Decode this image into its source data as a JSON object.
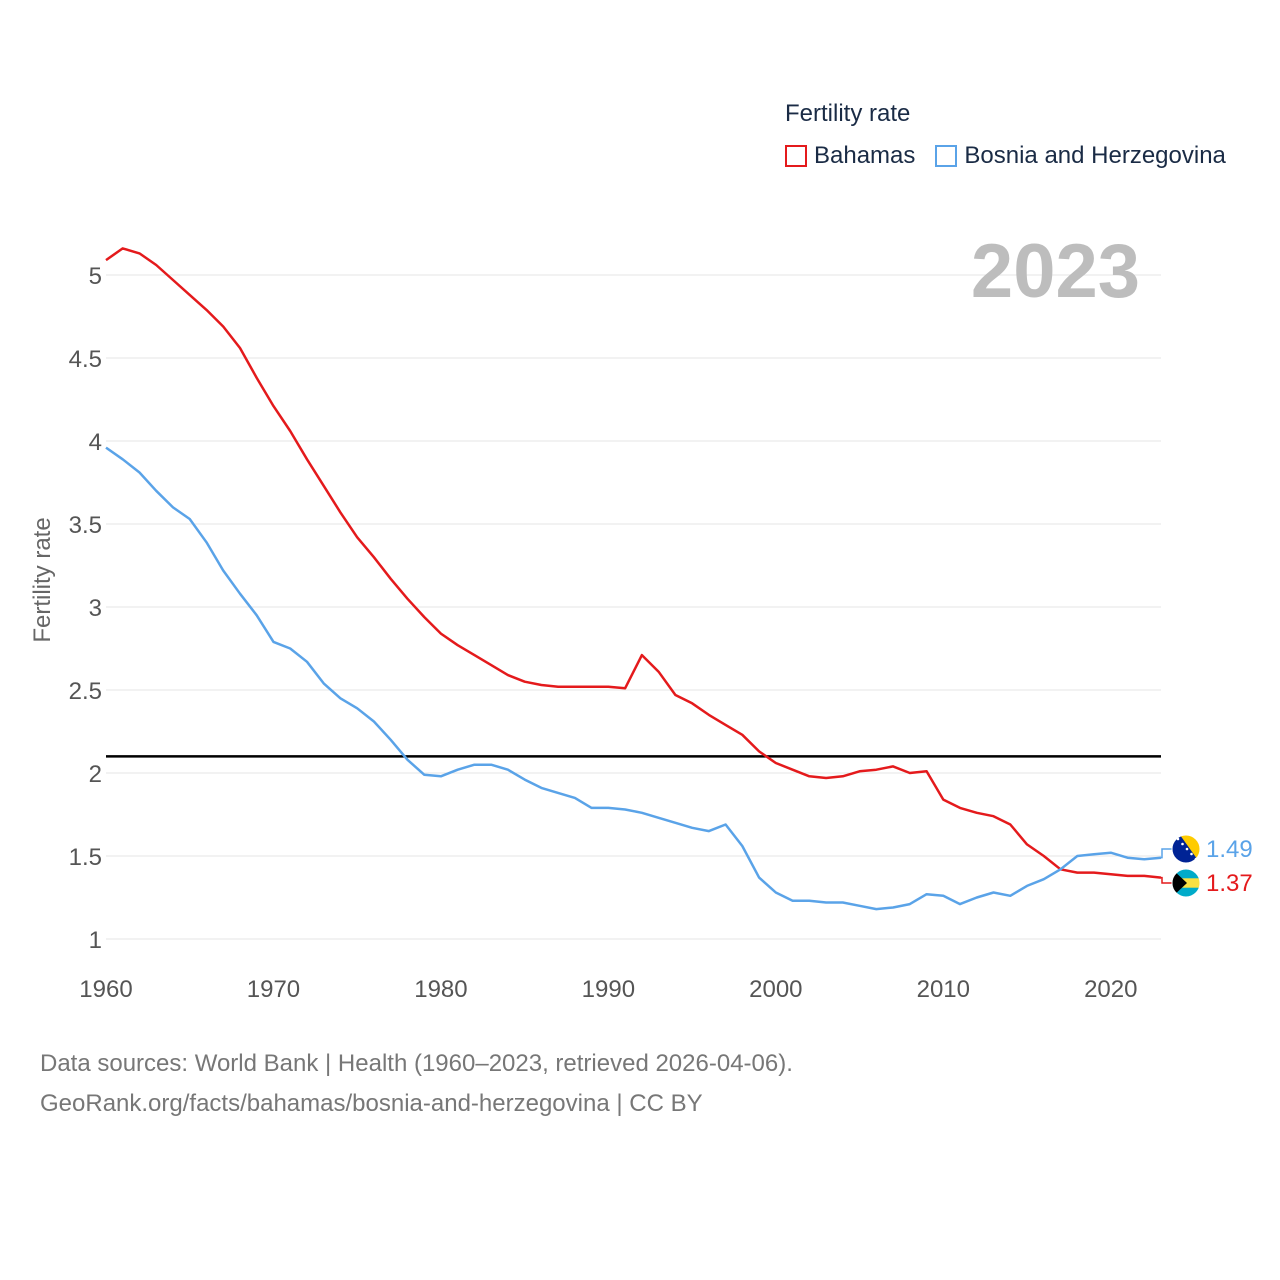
{
  "legend": {
    "title": "Fertility rate",
    "items": [
      {
        "label": "Bahamas",
        "color": "#e41a1c"
      },
      {
        "label": "Bosnia and Herzegovina",
        "color": "#5aa3e8"
      }
    ]
  },
  "year_label": "2023",
  "footer": {
    "line1": "Data sources: World Bank | Health (1960–2023, retrieved 2026-04-06).",
    "line2": "GeoRank.org/facts/bahamas/bosnia-and-herzegovina | CC BY"
  },
  "chart_data": {
    "type": "line",
    "title": "Fertility rate",
    "xlabel": "",
    "ylabel": "Fertility rate",
    "xlim": [
      1960,
      2023
    ],
    "ylim": [
      1,
      5
    ],
    "x_ticks": [
      1960,
      1970,
      1980,
      1990,
      2000,
      2010,
      2020
    ],
    "y_ticks": [
      1,
      1.5,
      2,
      2.5,
      3,
      3.5,
      4,
      4.5,
      5
    ],
    "reference_line": {
      "value": 2.1,
      "color": "#000000"
    },
    "x": [
      1960,
      1961,
      1962,
      1963,
      1964,
      1965,
      1966,
      1967,
      1968,
      1969,
      1970,
      1971,
      1972,
      1973,
      1974,
      1975,
      1976,
      1977,
      1978,
      1979,
      1980,
      1981,
      1982,
      1983,
      1984,
      1985,
      1986,
      1987,
      1988,
      1989,
      1990,
      1991,
      1992,
      1993,
      1994,
      1995,
      1996,
      1997,
      1998,
      1999,
      2000,
      2001,
      2002,
      2003,
      2004,
      2005,
      2006,
      2007,
      2008,
      2009,
      2010,
      2011,
      2012,
      2013,
      2014,
      2015,
      2016,
      2017,
      2018,
      2019,
      2020,
      2021,
      2022,
      2023
    ],
    "series": [
      {
        "name": "Bahamas",
        "color": "#e41a1c",
        "end_label": "1.37",
        "values": [
          5.09,
          5.16,
          5.13,
          5.06,
          4.97,
          4.88,
          4.79,
          4.69,
          4.56,
          4.38,
          4.21,
          4.06,
          3.89,
          3.73,
          3.57,
          3.42,
          3.3,
          3.17,
          3.05,
          2.94,
          2.84,
          2.77,
          2.71,
          2.65,
          2.59,
          2.55,
          2.53,
          2.52,
          2.52,
          2.52,
          2.52,
          2.51,
          2.71,
          2.61,
          2.47,
          2.42,
          2.35,
          2.29,
          2.23,
          2.13,
          2.06,
          2.02,
          1.98,
          1.97,
          1.98,
          2.01,
          2.02,
          2.04,
          2.0,
          2.01,
          1.84,
          1.79,
          1.76,
          1.74,
          1.69,
          1.57,
          1.5,
          1.42,
          1.4,
          1.4,
          1.39,
          1.38,
          1.38,
          1.37
        ]
      },
      {
        "name": "Bosnia and Herzegovina",
        "color": "#5aa3e8",
        "end_label": "1.49",
        "values": [
          3.96,
          3.89,
          3.81,
          3.7,
          3.6,
          3.53,
          3.39,
          3.22,
          3.08,
          2.95,
          2.79,
          2.75,
          2.67,
          2.54,
          2.45,
          2.39,
          2.31,
          2.2,
          2.08,
          1.99,
          1.98,
          2.02,
          2.05,
          2.05,
          2.02,
          1.96,
          1.91,
          1.88,
          1.85,
          1.79,
          1.79,
          1.78,
          1.76,
          1.73,
          1.7,
          1.67,
          1.65,
          1.69,
          1.56,
          1.37,
          1.28,
          1.23,
          1.23,
          1.22,
          1.22,
          1.2,
          1.18,
          1.19,
          1.21,
          1.27,
          1.26,
          1.21,
          1.25,
          1.28,
          1.26,
          1.32,
          1.36,
          1.42,
          1.5,
          1.51,
          1.52,
          1.49,
          1.48,
          1.49
        ]
      }
    ]
  }
}
